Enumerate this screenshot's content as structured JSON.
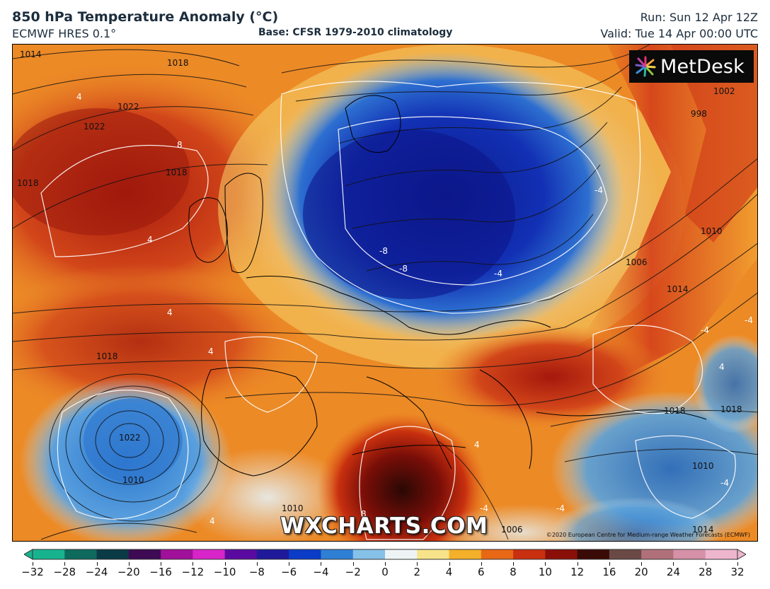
{
  "header": {
    "title": "850 hPa Temperature Anomaly (°C)",
    "model": "ECMWF HRES 0.1°",
    "base": "Base: CFSR 1979-2010 climatology",
    "run": "Run: Sun 12 Apr 12Z",
    "valid": "Valid: Tue 14 Apr 00:00 UTC"
  },
  "map": {
    "brand_logo": "MetDesk",
    "watermark": "WXCHARTS.COM",
    "copyright": "©2020 European Centre for Medium-range Weather Forecasts (ECMWF)",
    "isobar_labels": [
      "1014",
      "1018",
      "1022",
      "1018",
      "1018",
      "1018",
      "1010",
      "1006",
      "1010",
      "1014",
      "998",
      "1002",
      "1010",
      "1018",
      "1018",
      "1010",
      "1006",
      "1014",
      "1022",
      "1022"
    ],
    "anomaly_labels": [
      "4",
      "8",
      "4",
      "4",
      "4",
      "-8",
      "-8",
      "-4",
      "-4",
      "-4",
      "-4",
      "4",
      "8",
      "-4",
      "-4",
      "4",
      "4",
      "-4"
    ]
  },
  "colorbar": {
    "ticks": [
      "−32",
      "−28",
      "−24",
      "−20",
      "−16",
      "−12",
      "−10",
      "−8",
      "−6",
      "−4",
      "−2",
      "0",
      "2",
      "4",
      "6",
      "8",
      "10",
      "12",
      "16",
      "20",
      "24",
      "28",
      "32"
    ],
    "colors": [
      "#17b38f",
      "#0d6a5d",
      "#0a3a46",
      "#3d0a53",
      "#a0109a",
      "#d824c9",
      "#5a0aa0",
      "#1f1a9a",
      "#0a3cc7",
      "#2f7fd4",
      "#86c1e8",
      "#eef4f6",
      "#f7e48a",
      "#f4b02a",
      "#e86815",
      "#c83010",
      "#8a0f08",
      "#3a0a06",
      "#6b4a46",
      "#b0707a",
      "#d690a8",
      "#eeb6cc"
    ]
  }
}
